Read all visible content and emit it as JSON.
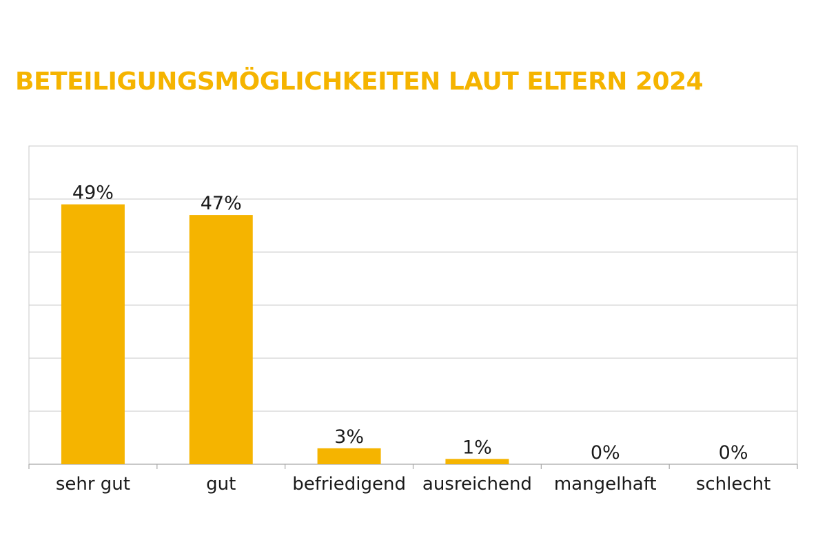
{
  "chart_data": {
    "type": "bar",
    "title": "BETEILIGUNGSMÖGLICHKEITEN LAUT ELTERN 2024",
    "categories": [
      "sehr gut",
      "gut",
      "befriedigend",
      "ausreichend",
      "mangelhaft",
      "schlecht"
    ],
    "values": [
      49,
      47,
      3,
      1,
      0,
      0
    ],
    "value_labels": [
      "49%",
      "47%",
      "3%",
      "1%",
      "0%",
      "0%"
    ],
    "xlabel": "",
    "ylabel": "",
    "ylim": [
      0,
      60
    ],
    "y_gridlines": [
      10,
      20,
      30,
      40,
      50
    ],
    "y_tick_labels_visible": false,
    "grid": true,
    "legend": "none",
    "bar_color": "#f5b400",
    "title_color": "#f5b400",
    "grid_color": "#c8c8c8"
  }
}
